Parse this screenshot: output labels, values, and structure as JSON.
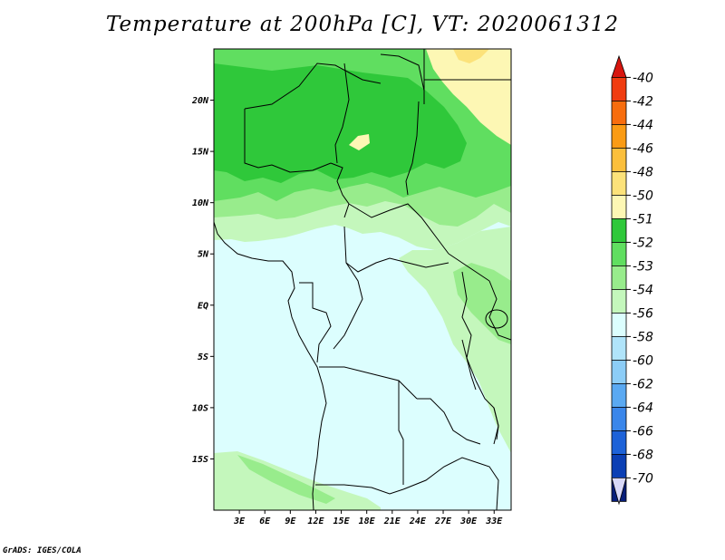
{
  "title": "Temperature at 200hPa [C], VT: 2020061312",
  "credit": "GrADS: IGES/COLA",
  "map": {
    "lon_range": [
      0,
      35
    ],
    "lat_range": [
      -20,
      25
    ],
    "lat_ticks": [
      {
        "value": 20,
        "label": "20N"
      },
      {
        "value": 15,
        "label": "15N"
      },
      {
        "value": 10,
        "label": "10N"
      },
      {
        "value": 5,
        "label": "5N"
      },
      {
        "value": 0,
        "label": "EQ"
      },
      {
        "value": -5,
        "label": "5S"
      },
      {
        "value": -10,
        "label": "10S"
      },
      {
        "value": -15,
        "label": "15S"
      }
    ],
    "lon_ticks": [
      {
        "value": 3,
        "label": "3E"
      },
      {
        "value": 6,
        "label": "6E"
      },
      {
        "value": 9,
        "label": "9E"
      },
      {
        "value": 12,
        "label": "12E"
      },
      {
        "value": 15,
        "label": "15E"
      },
      {
        "value": 18,
        "label": "18E"
      },
      {
        "value": 21,
        "label": "21E"
      },
      {
        "value": 24,
        "label": "24E"
      },
      {
        "value": 27,
        "label": "27E"
      },
      {
        "value": 30,
        "label": "30E"
      },
      {
        "value": 33,
        "label": "33E"
      }
    ]
  },
  "colorbar": {
    "levels": [
      {
        "label": "-40",
        "color": "#e01b10"
      },
      {
        "label": "-42",
        "color": "#f03c10"
      },
      {
        "label": "-44",
        "color": "#f76d0e"
      },
      {
        "label": "-46",
        "color": "#fa9b14"
      },
      {
        "label": "-48",
        "color": "#fbbf3c"
      },
      {
        "label": "-50",
        "color": "#fce27a"
      },
      {
        "label": "-51",
        "color": "#fdf7b4"
      },
      {
        "label": "-52",
        "color": "#2fc83a"
      },
      {
        "label": "-53",
        "color": "#60de60"
      },
      {
        "label": "-54",
        "color": "#98ec8c"
      },
      {
        "label": "-56",
        "color": "#c4f7bc"
      },
      {
        "label": "-58",
        "color": "#dcfefe"
      },
      {
        "label": "-60",
        "color": "#b0e4fa"
      },
      {
        "label": "-62",
        "color": "#8ccdf7"
      },
      {
        "label": "-64",
        "color": "#5aa9f2"
      },
      {
        "label": "-66",
        "color": "#3a86ea"
      },
      {
        "label": "-68",
        "color": "#1d62d8"
      },
      {
        "label": "-70",
        "color": "#0b3fb4"
      }
    ],
    "end_colors": {
      "top": "#d7160f",
      "bottom": "#071e7a",
      "last": "#d8d8f8"
    }
  }
}
